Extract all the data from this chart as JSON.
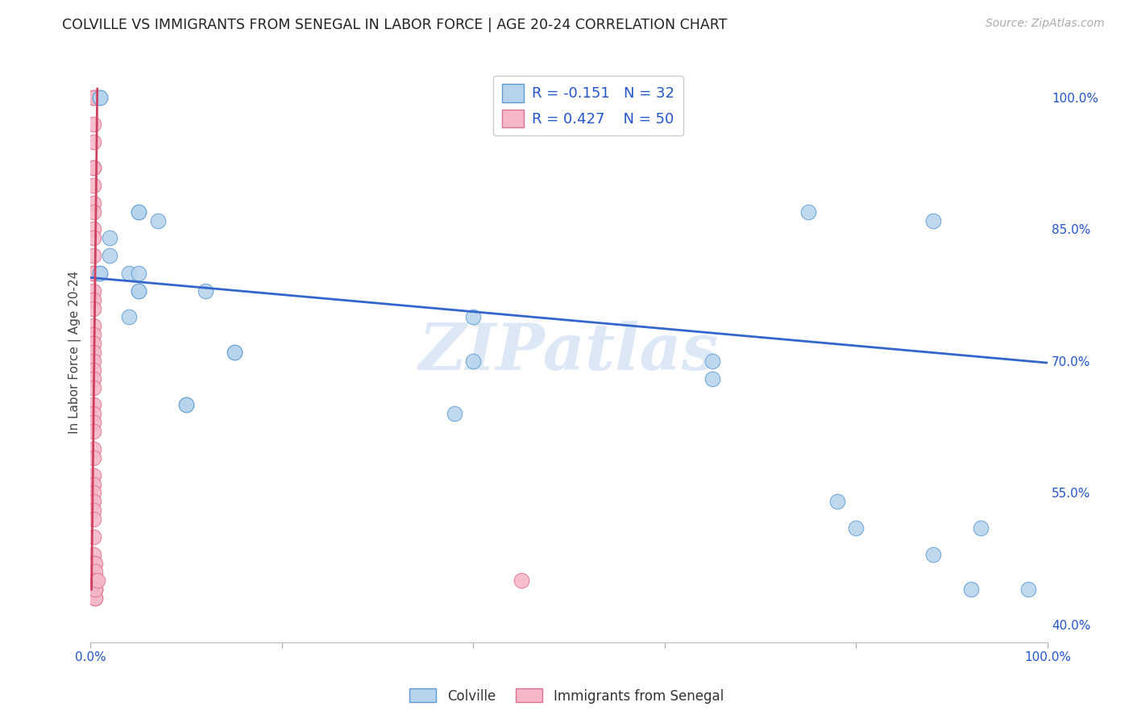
{
  "title": "COLVILLE VS IMMIGRANTS FROM SENEGAL IN LABOR FORCE | AGE 20-24 CORRELATION CHART",
  "source": "Source: ZipAtlas.com",
  "ylabel": "In Labor Force | Age 20-24",
  "blue_label": "Colville",
  "pink_label": "Immigrants from Senegal",
  "blue_r": -0.151,
  "blue_n": 32,
  "pink_r": 0.427,
  "pink_n": 50,
  "blue_color": "#b8d4ec",
  "blue_edge_color": "#5b9bd5",
  "blue_line_color": "#3366cc",
  "pink_color": "#f4b8c8",
  "pink_edge_color": "#e07090",
  "pink_line_color": "#d04060",
  "watermark_color": "#dce8f5",
  "blue_points_x": [
    0.01,
    0.01,
    0.01,
    0.01,
    0.02,
    0.02,
    0.04,
    0.04,
    0.05,
    0.05,
    0.05,
    0.05,
    0.05,
    0.07,
    0.1,
    0.1,
    0.12,
    0.15,
    0.15,
    0.38,
    0.4,
    0.4,
    0.65,
    0.65,
    0.75,
    0.78,
    0.8,
    0.88,
    0.88,
    0.92,
    0.93,
    0.98
  ],
  "blue_points_y": [
    0.8,
    0.8,
    1.0,
    1.0,
    0.82,
    0.84,
    0.8,
    0.75,
    0.87,
    0.87,
    0.78,
    0.78,
    0.8,
    0.86,
    0.65,
    0.65,
    0.78,
    0.71,
    0.71,
    0.64,
    0.75,
    0.7,
    0.7,
    0.68,
    0.87,
    0.54,
    0.51,
    0.86,
    0.48,
    0.44,
    0.51,
    0.44
  ],
  "pink_points_x": [
    0.003,
    0.003,
    0.003,
    0.003,
    0.003,
    0.003,
    0.003,
    0.003,
    0.003,
    0.003,
    0.003,
    0.003,
    0.003,
    0.003,
    0.003,
    0.003,
    0.003,
    0.003,
    0.003,
    0.003,
    0.003,
    0.003,
    0.003,
    0.003,
    0.003,
    0.003,
    0.003,
    0.003,
    0.003,
    0.003,
    0.003,
    0.003,
    0.003,
    0.003,
    0.003,
    0.003,
    0.003,
    0.003,
    0.003,
    0.003,
    0.005,
    0.005,
    0.005,
    0.005,
    0.005,
    0.005,
    0.005,
    0.005,
    0.007,
    0.45
  ],
  "pink_points_y": [
    1.0,
    1.0,
    0.97,
    0.95,
    0.92,
    0.92,
    0.9,
    0.88,
    0.87,
    0.85,
    0.84,
    0.82,
    0.8,
    0.8,
    0.78,
    0.77,
    0.76,
    0.74,
    0.73,
    0.72,
    0.71,
    0.7,
    0.69,
    0.68,
    0.67,
    0.65,
    0.64,
    0.63,
    0.62,
    0.6,
    0.59,
    0.57,
    0.56,
    0.55,
    0.54,
    0.53,
    0.52,
    0.5,
    0.48,
    0.47,
    0.47,
    0.46,
    0.45,
    0.44,
    0.44,
    0.43,
    0.43,
    0.44,
    0.45,
    0.45
  ],
  "blue_line_x": [
    0.0,
    1.0
  ],
  "blue_line_y": [
    0.795,
    0.698
  ],
  "pink_line_x": [
    0.001,
    0.007
  ],
  "pink_line_y": [
    0.44,
    1.01
  ],
  "xlim": [
    0.0,
    1.0
  ],
  "ylim": [
    0.38,
    1.04
  ],
  "yticks": [
    0.4,
    0.55,
    0.7,
    0.85,
    1.0
  ],
  "ytick_labels": [
    "40.0%",
    "55.0%",
    "70.0%",
    "85.0%",
    "100.0%"
  ],
  "xticks": [
    0.0,
    0.2,
    0.4,
    0.6,
    0.8,
    1.0
  ],
  "xtick_labels": [
    "0.0%",
    "",
    "",
    "",
    "",
    "100.0%"
  ],
  "background_color": "#ffffff",
  "grid_color": "#d8d8d8"
}
